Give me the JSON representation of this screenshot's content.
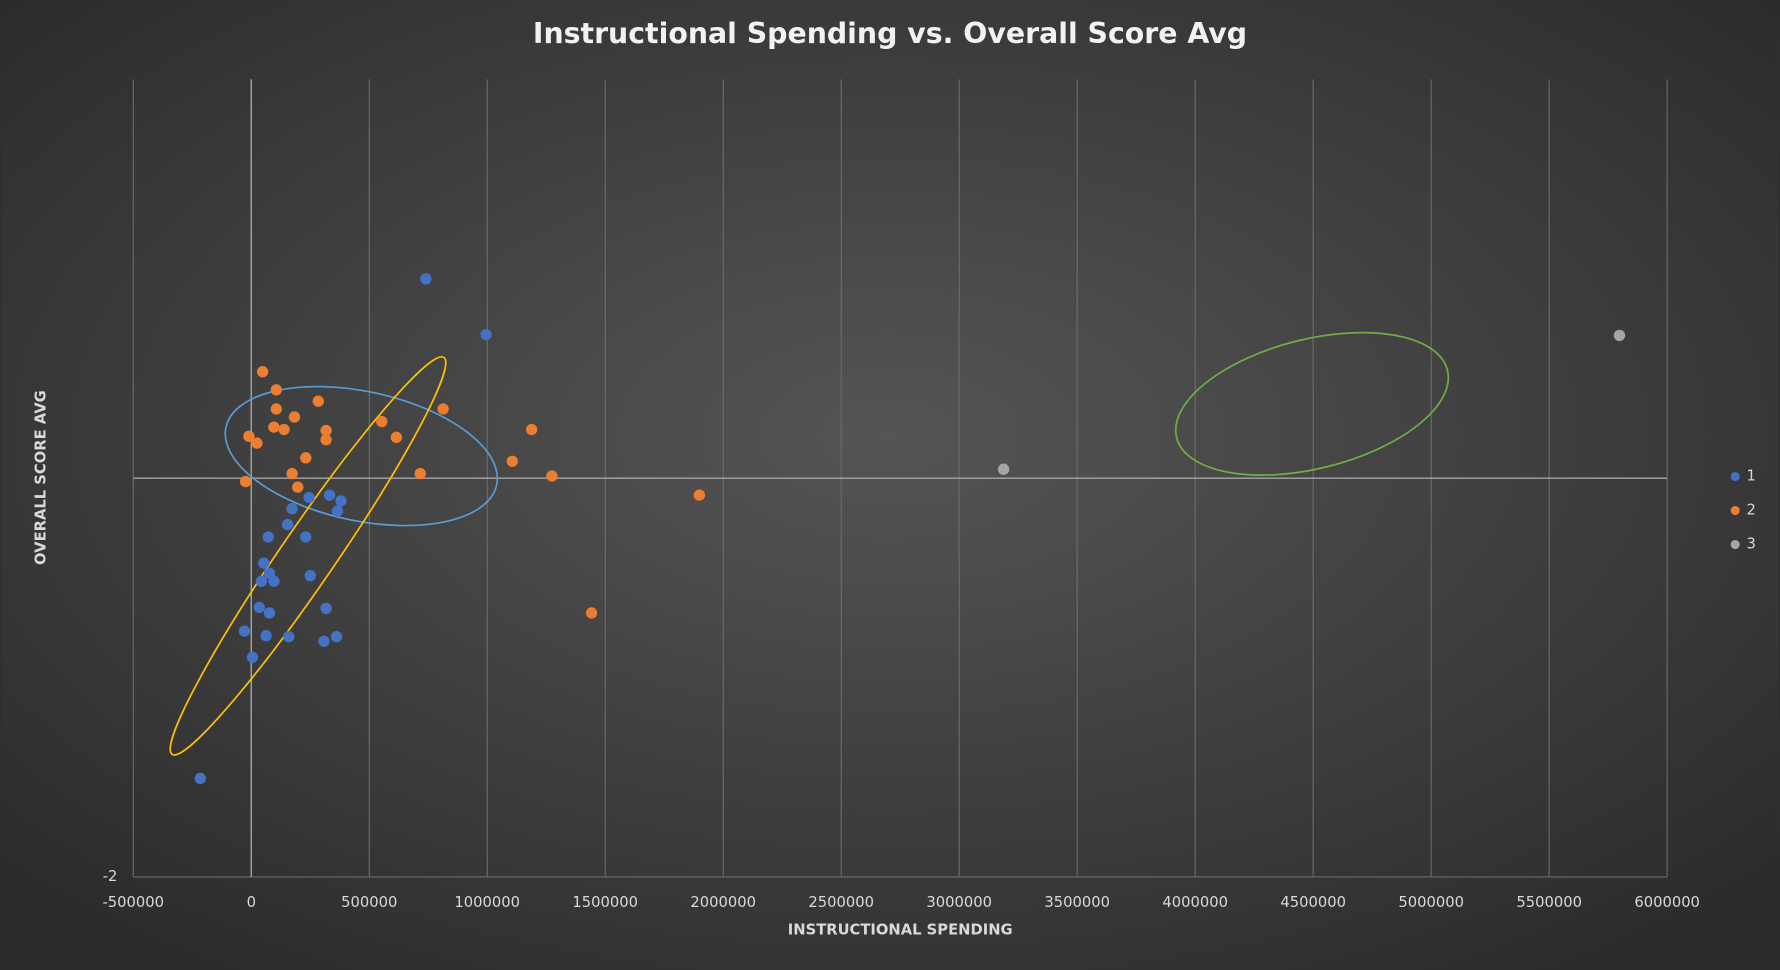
{
  "chart_data": {
    "type": "scatter",
    "title": "Instructional Spending vs. Overall Score Avg",
    "x_label": "INSTRUCTIONAL SPENDING",
    "y_label": "OVERALL SCORE AVG",
    "xlim": [
      -500000,
      6000000
    ],
    "xticks": [
      -500000,
      0,
      500000,
      1000000,
      1500000,
      2000000,
      2500000,
      3000000,
      3500000,
      4000000,
      4500000,
      5000000,
      5500000,
      6000000
    ],
    "ylim": [
      -2,
      2
    ],
    "yticks": [
      -2
    ],
    "grid": true,
    "legend": "right",
    "series": [
      {
        "name": "1",
        "color": "#4472c4",
        "x": [
          740000,
          995000,
          332000,
          380000,
          245000,
          365000,
          173000,
          154000,
          72000,
          231000,
          53000,
          77000,
          43000,
          96000,
          250000,
          34000,
          77000,
          317000,
          -29000,
          63000,
          159000,
          308000,
          361000,
          5000,
          -216000
        ],
        "y": [
          1.0,
          0.72,
          -0.085,
          -0.114,
          -0.097,
          -0.165,
          -0.153,
          -0.233,
          -0.295,
          -0.295,
          -0.426,
          -0.477,
          -0.517,
          -0.517,
          -0.489,
          -0.648,
          -0.676,
          -0.653,
          -0.767,
          -0.79,
          -0.795,
          -0.818,
          -0.795,
          -0.898,
          -1.506
        ]
      },
      {
        "name": "2",
        "color": "#ed7d31",
        "x": [
          48000,
          106000,
          284000,
          106000,
          183000,
          96000,
          139000,
          -10000,
          24000,
          317000,
          317000,
          553000,
          615000,
          813000,
          1188000,
          231000,
          173000,
          197000,
          -24000,
          716000,
          1106000,
          1274000,
          1899000,
          1442000
        ],
        "y": [
          0.534,
          0.443,
          0.386,
          0.347,
          0.307,
          0.256,
          0.244,
          0.21,
          0.176,
          0.239,
          0.193,
          0.284,
          0.205,
          0.347,
          0.244,
          0.102,
          0.023,
          -0.045,
          -0.017,
          0.023,
          0.085,
          0.011,
          -0.085,
          -0.676
        ]
      },
      {
        "name": "3",
        "color": "#a5a5a5",
        "x": [
          3188000,
          5798000
        ],
        "y": [
          0.045,
          0.716
        ]
      }
    ]
  }
}
